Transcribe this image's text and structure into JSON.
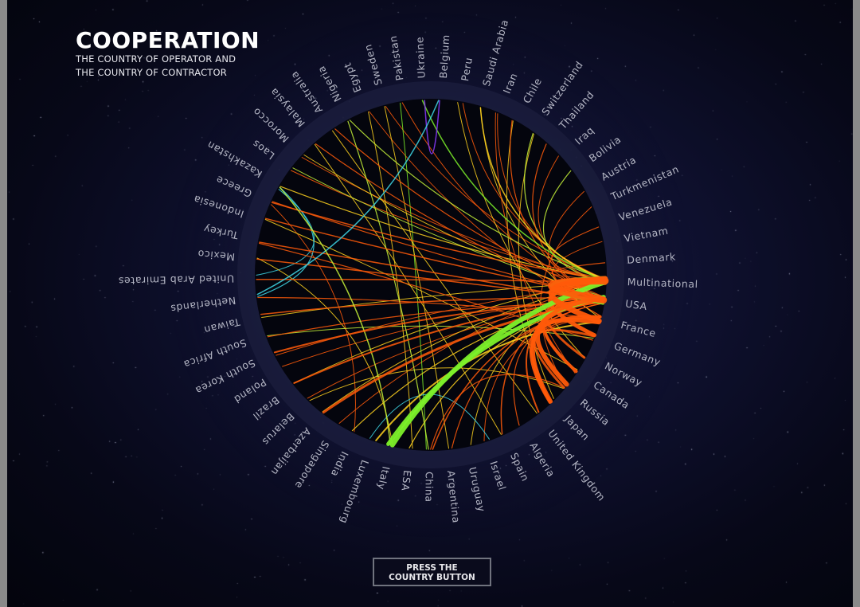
{
  "title": "COOPERATION",
  "subtitle_line1": "THE COUNTRY OF OPERATOR AND",
  "subtitle_line2": "THE COUNTRY OF CONTRACTOR",
  "button": {
    "line1": "PRESS THE",
    "line2": "COUNTRY BUTTON"
  },
  "countries": [
    "Multinational",
    "USA",
    "France",
    "Germany",
    "Norway",
    "Canada",
    "Russia",
    "Japan",
    "United Kingdom",
    "Algeria",
    "Spain",
    "Israel",
    "Uruguay",
    "Argentina",
    "China",
    "ESA",
    "Italy",
    "Luxembourg",
    "India",
    "Singapore",
    "Azerbaijan",
    "Belarus",
    "Brazil",
    "Poland",
    "South Korea",
    "South Africa",
    "Taiwan",
    "Netherlands",
    "United Arab Emirates",
    "Mexico",
    "Turkey",
    "Indonesia",
    "Greece",
    "Kazakhstan",
    "Laos",
    "Morocco",
    "Malaysia",
    "Australia",
    "Nigeria",
    "Egypt",
    "Sweden",
    "Pakistan",
    "Ukraine",
    "Belgium",
    "Peru",
    "Saudi Arabia",
    "Iran",
    "Chile",
    "Switzerland",
    "Thailand",
    "Iraq",
    "Bolivia",
    "Austria",
    "Turkmenistan",
    "Venezuela",
    "Vietnam",
    "Denmark"
  ],
  "colors": {
    "orange": "#ff5a0a",
    "orange_light": "#ff8a1a",
    "yellow": "#ffd21e",
    "green": "#7cf02a",
    "lime": "#c8f53a",
    "cyan": "#40d8e8",
    "purple": "#8a3cff",
    "label": "#b4b6c4"
  },
  "links": [
    {
      "from": "Multinational",
      "to": "USA",
      "color": "orange",
      "weight": 9
    },
    {
      "from": "Multinational",
      "to": "France",
      "color": "orange",
      "weight": 7
    },
    {
      "from": "Multinational",
      "to": "Germany",
      "color": "orange",
      "weight": 5
    },
    {
      "from": "Multinational",
      "to": "Italy",
      "color": "green",
      "weight": 6
    },
    {
      "from": "USA",
      "to": "Italy",
      "color": "green",
      "weight": 5
    },
    {
      "from": "USA",
      "to": "Multinational",
      "color": "green",
      "weight": 4
    },
    {
      "from": "France",
      "to": "Russia",
      "color": "orange",
      "weight": 6
    },
    {
      "from": "France",
      "to": "Japan",
      "color": "orange",
      "weight": 4
    },
    {
      "from": "USA",
      "to": "Japan",
      "color": "orange",
      "weight": 5
    },
    {
      "from": "USA",
      "to": "Canada",
      "color": "orange",
      "weight": 4
    },
    {
      "from": "USA",
      "to": "Norway",
      "color": "orange",
      "weight": 3
    },
    {
      "from": "Germany",
      "to": "Russia",
      "color": "orange",
      "weight": 3
    },
    {
      "from": "USA",
      "to": "Azerbaijan",
      "color": "orange",
      "weight": 3
    },
    {
      "from": "France",
      "to": "Luxembourg",
      "color": "yellow",
      "weight": 2
    },
    {
      "from": "USA",
      "to": "Brazil",
      "color": "orange",
      "weight": 2
    },
    {
      "from": "USA",
      "to": "South Korea",
      "color": "orange",
      "weight": 2
    },
    {
      "from": "USA",
      "to": "Taiwan",
      "color": "orange",
      "weight": 1.5
    },
    {
      "from": "USA",
      "to": "Mexico",
      "color": "orange",
      "weight": 1.5
    },
    {
      "from": "USA",
      "to": "Turkey",
      "color": "orange",
      "weight": 1.5
    },
    {
      "from": "USA",
      "to": "Indonesia",
      "color": "orange",
      "weight": 1.5
    },
    {
      "from": "USA",
      "to": "Greece",
      "color": "orange",
      "weight": 1.2
    },
    {
      "from": "Multinational",
      "to": "Greece",
      "color": "orange",
      "weight": 1.5
    },
    {
      "from": "Multinational",
      "to": "United Arab Emirates",
      "color": "orange",
      "weight": 1.5
    },
    {
      "from": "France",
      "to": "Netherlands",
      "color": "orange",
      "weight": 1.2
    },
    {
      "from": "USA",
      "to": "South Africa",
      "color": "orange",
      "weight": 1.2
    },
    {
      "from": "USA",
      "to": "Poland",
      "color": "orange",
      "weight": 1
    },
    {
      "from": "USA",
      "to": "Belarus",
      "color": "orange",
      "weight": 1
    },
    {
      "from": "Multinational",
      "to": "Singapore",
      "color": "orange",
      "weight": 1
    },
    {
      "from": "USA",
      "to": "India",
      "color": "yellow",
      "weight": 1.2
    },
    {
      "from": "USA",
      "to": "ESA",
      "color": "yellow",
      "weight": 1.2
    },
    {
      "from": "USA",
      "to": "China",
      "color": "orange",
      "weight": 1.5
    },
    {
      "from": "Russia",
      "to": "China",
      "color": "orange",
      "weight": 1.2
    },
    {
      "from": "USA",
      "to": "Argentina",
      "color": "orange",
      "weight": 1.2
    },
    {
      "from": "Multinational",
      "to": "Uruguay",
      "color": "yellow",
      "weight": 1
    },
    {
      "from": "France",
      "to": "Israel",
      "color": "orange",
      "weight": 1
    },
    {
      "from": "USA",
      "to": "Spain",
      "color": "orange",
      "weight": 1.5
    },
    {
      "from": "France",
      "to": "Algeria",
      "color": "orange",
      "weight": 1.2
    },
    {
      "from": "USA",
      "to": "United Kingdom",
      "color": "orange",
      "weight": 2
    },
    {
      "from": "Multinational",
      "to": "Kazakhstan",
      "color": "yellow",
      "weight": 1.2
    },
    {
      "from": "Multinational",
      "to": "Laos",
      "color": "orange",
      "weight": 1
    },
    {
      "from": "Multinational",
      "to": "Morocco",
      "color": "orange",
      "weight": 1
    },
    {
      "from": "USA",
      "to": "Malaysia",
      "color": "orange",
      "weight": 1.2
    },
    {
      "from": "USA",
      "to": "Australia",
      "color": "orange",
      "weight": 1.2
    },
    {
      "from": "Multinational",
      "to": "Nigeria",
      "color": "lime",
      "weight": 1.2
    },
    {
      "from": "France",
      "to": "Egypt",
      "color": "orange",
      "weight": 1
    },
    {
      "from": "Multinational",
      "to": "Sweden",
      "color": "orange",
      "weight": 1
    },
    {
      "from": "USA",
      "to": "Pakistan",
      "color": "orange",
      "weight": 1
    },
    {
      "from": "Multinational",
      "to": "Ukraine",
      "color": "green",
      "weight": 1.5
    },
    {
      "from": "Ukraine",
      "to": "Belgium",
      "color": "purple",
      "weight": 1.5
    },
    {
      "from": "Belgium",
      "to": "Netherlands",
      "color": "cyan",
      "weight": 1.5
    },
    {
      "from": "Netherlands",
      "to": "Kazakhstan",
      "color": "cyan",
      "weight": 1.2
    },
    {
      "from": "United Arab Emirates",
      "to": "Kazakhstan",
      "color": "cyan",
      "weight": 1
    },
    {
      "from": "Multinational",
      "to": "Peru",
      "color": "orange",
      "weight": 1
    },
    {
      "from": "Multinational",
      "to": "Saudi Arabia",
      "color": "yellow",
      "weight": 1.5
    },
    {
      "from": "Multinational",
      "to": "Iran",
      "color": "orange",
      "weight": 1
    },
    {
      "from": "USA",
      "to": "Chile",
      "color": "orange",
      "weight": 1.2
    },
    {
      "from": "Multinational",
      "to": "Switzerland",
      "color": "lime",
      "weight": 1.2
    },
    {
      "from": "USA",
      "to": "Thailand",
      "color": "orange",
      "weight": 1.2
    },
    {
      "from": "Multinational",
      "to": "Iraq",
      "color": "orange",
      "weight": 1
    },
    {
      "from": "Multinational",
      "to": "Bolivia",
      "color": "lime",
      "weight": 1.2
    },
    {
      "from": "France",
      "to": "Austria",
      "color": "orange",
      "weight": 1
    },
    {
      "from": "Russia",
      "to": "Turkmenistan",
      "color": "orange",
      "weight": 1
    },
    {
      "from": "Multinational",
      "to": "Venezuela",
      "color": "orange",
      "weight": 1.2
    },
    {
      "from": "USA",
      "to": "Vietnam",
      "color": "orange",
      "weight": 1
    },
    {
      "from": "Multinational",
      "to": "Denmark",
      "color": "orange",
      "weight": 1.2
    },
    {
      "from": "Italy",
      "to": "Kazakhstan",
      "color": "lime",
      "weight": 1.5
    },
    {
      "from": "China",
      "to": "Nigeria",
      "color": "lime",
      "weight": 1.2
    },
    {
      "from": "China",
      "to": "Pakistan",
      "color": "green",
      "weight": 1
    },
    {
      "from": "ESA",
      "to": "Egypt",
      "color": "yellow",
      "weight": 1
    },
    {
      "from": "Argentina",
      "to": "Sweden",
      "color": "yellow",
      "weight": 1
    },
    {
      "from": "Japan",
      "to": "Chile",
      "color": "yellow",
      "weight": 1
    },
    {
      "from": "Japan",
      "to": "Switzerland",
      "color": "yellow",
      "weight": 1
    },
    {
      "from": "Italy",
      "to": "Mexico",
      "color": "yellow",
      "weight": 1
    },
    {
      "from": "India",
      "to": "Greece",
      "color": "orange",
      "weight": 1
    },
    {
      "from": "Spain",
      "to": "Malaysia",
      "color": "yellow",
      "weight": 1
    },
    {
      "from": "Canada",
      "to": "Indonesia",
      "color": "yellow",
      "weight": 1
    },
    {
      "from": "Germany",
      "to": "Turkey",
      "color": "orange",
      "weight": 1.2
    },
    {
      "from": "United Kingdom",
      "to": "Australia",
      "color": "yellow",
      "weight": 1
    },
    {
      "from": "Russia",
      "to": "Belarus",
      "color": "yellow",
      "weight": 1
    },
    {
      "from": "Israel",
      "to": "Luxembourg",
      "color": "cyan",
      "weight": 1
    },
    {
      "from": "France",
      "to": "Saudi Arabia",
      "color": "yellow",
      "weight": 1
    },
    {
      "from": "Germany",
      "to": "South Africa",
      "color": "lime",
      "weight": 1
    },
    {
      "from": "Norway",
      "to": "Peru",
      "color": "yellow",
      "weight": 1
    },
    {
      "from": "Multinational",
      "to": "Brazil",
      "color": "yellow",
      "weight": 1
    },
    {
      "from": "Multinational",
      "to": "Azerbaijan",
      "color": "yellow",
      "weight": 1
    },
    {
      "from": "Canada",
      "to": "Iran",
      "color": "orange",
      "weight": 1
    },
    {
      "from": "USA",
      "to": "Laos",
      "color": "lime",
      "weight": 1
    },
    {
      "from": "USA",
      "to": "Morocco",
      "color": "yellow",
      "weight": 1
    },
    {
      "from": "Multinational",
      "to": "Taiwan",
      "color": "yellow",
      "weight": 1
    },
    {
      "from": "Multinational",
      "to": "South Korea",
      "color": "orange",
      "weight": 1
    }
  ]
}
